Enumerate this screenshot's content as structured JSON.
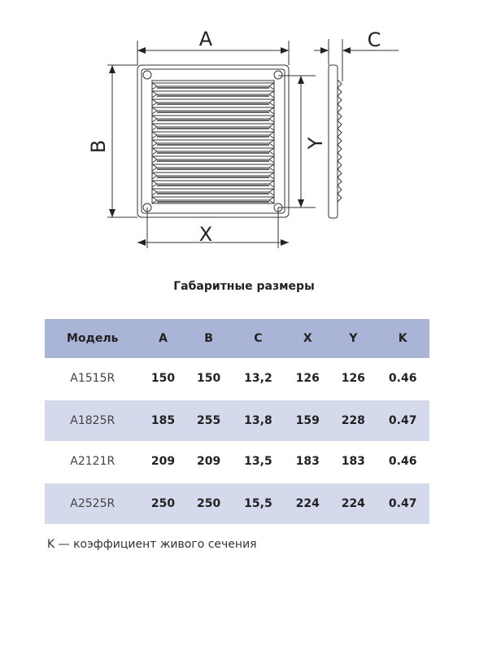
{
  "drawing": {
    "labels": {
      "a": "A",
      "b": "B",
      "c": "C",
      "x": "X",
      "y": "Y"
    }
  },
  "title": "Габаритные размеры",
  "table": {
    "headers": [
      "Модель",
      "A",
      "B",
      "C",
      "X",
      "Y",
      "K"
    ],
    "rows": [
      [
        "A1515R",
        "150",
        "150",
        "13,2",
        "126",
        "126",
        "0.46"
      ],
      [
        "A1825R",
        "185",
        "255",
        "13,8",
        "159",
        "228",
        "0.47"
      ],
      [
        "A2121R",
        "209",
        "209",
        "13,5",
        "183",
        "183",
        "0.46"
      ],
      [
        "A2525R",
        "250",
        "250",
        "15,5",
        "224",
        "224",
        "0.47"
      ]
    ]
  },
  "colors": {
    "header_bg": "#a9b4d6",
    "alt_row_bg": "#d4d9ec"
  },
  "note": "K — коэффициент живого сечения"
}
